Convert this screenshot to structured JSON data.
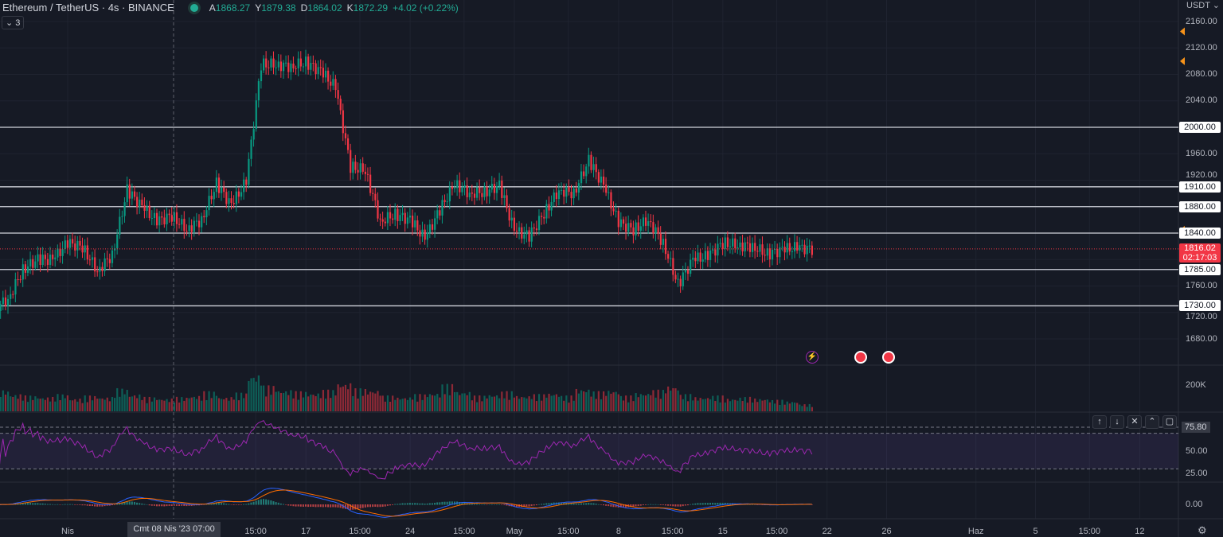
{
  "header": {
    "symbol": "Ethereum / TetherUS · 4s · BINANCE",
    "o_label": "A",
    "o": "1868.27",
    "h_label": "Y",
    "h": "1879.38",
    "l_label": "D",
    "l": "1864.02",
    "c_label": "K",
    "c": "1872.29",
    "change": "+4.02 (+0.22%)",
    "indicators_count": "3"
  },
  "currency": "USDT",
  "colors": {
    "up": "#089981",
    "down": "#f23645",
    "rsi": "#9c27b0",
    "macd": "#2962ff",
    "signal": "#ff6d00",
    "level": "#d1d4dc",
    "marker": "#f7931a"
  },
  "price_axis": [
    "2160.00",
    "2120.00",
    "2080.00",
    "2040.00",
    "1960.00",
    "1920.00",
    "1760.00",
    "1720.00",
    "1680.00"
  ],
  "levels": [
    "2000.00",
    "1910.00",
    "1880.00",
    "1840.00",
    "1785.00",
    "1730.00"
  ],
  "current": {
    "price": "1816.02",
    "countdown": "02:17:03"
  },
  "volume_axis": "200K",
  "rsi_axis": {
    "value": "75.80",
    "mid": "50.00",
    "low": "25.00"
  },
  "macd_axis": "0.00",
  "time_axis": [
    {
      "t": "Nis",
      "d": "2023-04-01"
    },
    {
      "t": "15:00",
      "d": "2023-04-13 15:00"
    },
    {
      "t": "17",
      "d": "2023-04-17"
    },
    {
      "t": "15:00",
      "d": "2023-04-20 15:00"
    },
    {
      "t": "24",
      "d": "2023-04-24"
    },
    {
      "t": "15:00",
      "d": "2023-04-27 15:00"
    },
    {
      "t": "May",
      "d": "2023-05-01"
    },
    {
      "t": "15:00",
      "d": "2023-05-04 15:00"
    },
    {
      "t": "8",
      "d": "2023-05-08"
    },
    {
      "t": "15:00",
      "d": "2023-05-11 15:00"
    },
    {
      "t": "15",
      "d": "2023-05-15"
    },
    {
      "t": "15:00",
      "d": "2023-05-18 15:00"
    },
    {
      "t": "22",
      "d": "2023-05-22"
    },
    {
      "t": "26",
      "d": "2023-05-26"
    },
    {
      "t": "Haz",
      "d": "2023-06-01"
    },
    {
      "t": "5",
      "d": "2023-06-05"
    },
    {
      "t": "15:00",
      "d": "2023-06-08 15:00"
    },
    {
      "t": "12",
      "d": "2023-06-12"
    }
  ],
  "crosshair": "Cmt 08 Nis '23   07:00",
  "toolbar": [
    "↑",
    "↓",
    "✕",
    "⌃",
    "▢"
  ],
  "chart_data": {
    "type": "candlestick",
    "start": "2023-03-28",
    "interval": "1D",
    "ylim": [
      1660,
      2180
    ],
    "close": [
      1740,
      1785,
      1800,
      1800,
      1825,
      1819,
      1783,
      1807,
      1905,
      1880,
      1858,
      1866,
      1846,
      1860,
      1915,
      1882,
      1918,
      2095,
      2095,
      2092,
      2098,
      2085,
      2060,
      1940,
      1935,
      1858,
      1868,
      1860,
      1832,
      1875,
      1915,
      1900,
      1902,
      1912,
      1844,
      1835,
      1870,
      1905,
      1900,
      1950,
      1912,
      1856,
      1845,
      1860,
      1825,
      1762,
      1800,
      1805,
      1825,
      1822,
      1820,
      1808,
      1815,
      1818,
      1816
    ],
    "volume_k": [
      150,
      120,
      110,
      100,
      120,
      90,
      110,
      100,
      160,
      120,
      100,
      90,
      100,
      110,
      140,
      100,
      130,
      260,
      180,
      150,
      140,
      130,
      150,
      200,
      160,
      150,
      110,
      100,
      120,
      130,
      190,
      140,
      110,
      120,
      140,
      110,
      120,
      130,
      110,
      160,
      140,
      150,
      110,
      130,
      150,
      180,
      120,
      100,
      110,
      90,
      100,
      90,
      80,
      70,
      50
    ],
    "rsi_levels": [
      70,
      30
    ],
    "horizontal_levels": [
      2000,
      1910,
      1880,
      1840,
      1785,
      1730
    ]
  }
}
